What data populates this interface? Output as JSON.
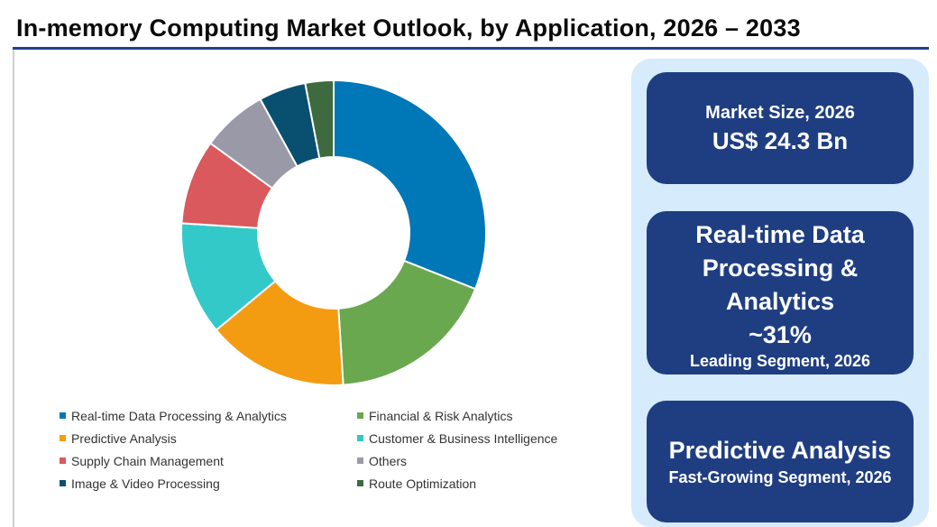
{
  "title": "In-memory Computing Market Outlook, by Application, 2026 – 2033",
  "chart_data": {
    "type": "pie",
    "donut": true,
    "categories": [
      "Real-time Data Processing & Analytics",
      "Financial & Risk Analytics",
      "Predictive Analysis",
      "Customer & Business Intelligence",
      "Supply Chain Management",
      "Others",
      "Image & Video Processing",
      "Route Optimization"
    ],
    "values": [
      31,
      18,
      15,
      12,
      9,
      7,
      5,
      3
    ],
    "colors": [
      "#0077b6",
      "#6aa84f",
      "#f39c12",
      "#33c9c9",
      "#d9595c",
      "#9a99a8",
      "#084f70",
      "#3d6b3f"
    ],
    "legend_order": [
      "Real-time Data Processing & Analytics",
      "Financial & Risk Analytics",
      "Predictive Analysis",
      "Customer & Business Intelligence",
      "Supply Chain Management",
      "Others",
      "Image & Video Processing",
      "Route Optimization"
    ],
    "legend_position": "bottom"
  },
  "cards": {
    "market_size": {
      "label": "Market Size, 2026",
      "value": "US$ 24.3 Bn"
    },
    "leading": {
      "name": "Real-time Data Processing & Analytics",
      "value": "~31%",
      "sub": "Leading Segment, 2026"
    },
    "fastest": {
      "name": "Predictive Analysis",
      "sub": "Fast-Growing Segment, 2026"
    }
  }
}
